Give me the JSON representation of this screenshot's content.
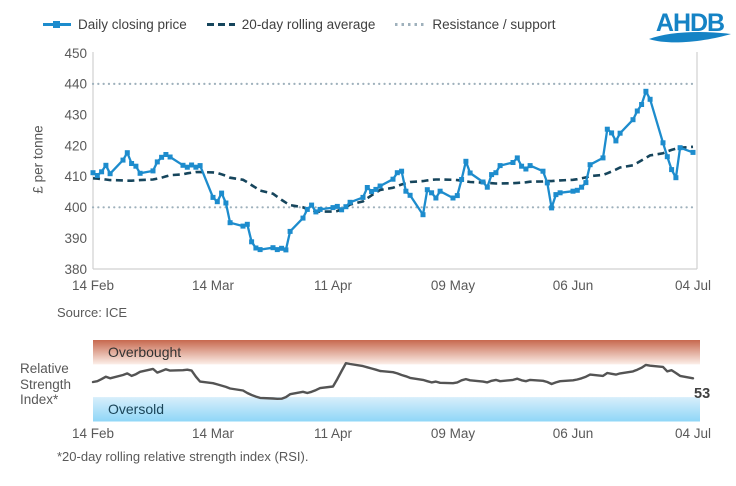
{
  "legend": {
    "items": [
      {
        "label": "Daily closing price",
        "swatch": "line-with-square-marker"
      },
      {
        "label": "20-day rolling average",
        "swatch": "dashed-line"
      },
      {
        "label": "Resistance / support",
        "swatch": "dotted-line"
      }
    ]
  },
  "logo": {
    "text": "AHDB"
  },
  "colors": {
    "price_line": "#1d8ccd",
    "rolling_avg_line": "#16455c",
    "resistance_support": "#9fb1bc",
    "rsi_line": "#545454",
    "axis_line": "#d0d0d0",
    "text": "#595959",
    "logo_blue": "#1583c5",
    "overbought_top": "#c7684e",
    "overbought_bottom": "#fcefe9",
    "oversold_top": "#d8effb",
    "oversold_bottom": "#8fd6f7"
  },
  "chart_data": [
    {
      "type": "line",
      "title": "",
      "xlabel": "",
      "ylabel": "£ per tonne",
      "ylim": [
        380,
        450
      ],
      "yticks": [
        380,
        390,
        400,
        410,
        420,
        430,
        440,
        450
      ],
      "xticklabels": [
        "14 Feb",
        "14 Mar",
        "11 Apr",
        "09 May",
        "06 Jun",
        "04 Jul"
      ],
      "x_is_trading_days": true,
      "resistance": 440,
      "support": 400,
      "grid": false,
      "legend_position": "top",
      "source_note": "Source: ICE",
      "series": [
        {
          "name": "Daily closing price",
          "marker": "square",
          "values": [
            411.2,
            410.3,
            411.5,
            413.6,
            410.9,
            415.3,
            417.7,
            414.2,
            413.3,
            411.0,
            411.8,
            414.7,
            416.2,
            417.1,
            416.3,
            413.6,
            413.0,
            413.7,
            413.0,
            413.5,
            403.2,
            401.8,
            404.6,
            401.4,
            395.0,
            393.9,
            394.5,
            388.8,
            386.8,
            386.3,
            386.9,
            386.3,
            386.7,
            386.2,
            392.2,
            396.5,
            399.3,
            400.7,
            398.5,
            399.3,
            399.9,
            400.3,
            399.2,
            400.2,
            401.6,
            403.2,
            406.4,
            405.1,
            405.8,
            406.9,
            409.1,
            411.2,
            411.7,
            405.2,
            403.9,
            397.6,
            405.7,
            404.7,
            403.0,
            405.2,
            403.0,
            403.8,
            409.0,
            414.9,
            411.1,
            408.2,
            406.5,
            410.6,
            411.2,
            413.5,
            414.5,
            416.0,
            413.3,
            412.4,
            413.5,
            411.7,
            407.9,
            399.8,
            404.1,
            404.7,
            405.2,
            405.5,
            406.5,
            408.0,
            413.8,
            416.0,
            425.3,
            424.1,
            421.5,
            424.0,
            428.4,
            431.2,
            433.3,
            437.6,
            435.0,
            420.9,
            416.4,
            412.2,
            409.6,
            419.3,
            417.8
          ]
        },
        {
          "name": "20-day rolling average",
          "style": "dashed",
          "values": [
            409.4,
            409.3,
            409.1,
            409.0,
            408.8,
            408.7,
            408.6,
            408.6,
            408.7,
            408.8,
            409.0,
            409.3,
            409.6,
            410.0,
            410.4,
            410.7,
            411.0,
            411.2,
            411.4,
            411.4,
            411.3,
            411.1,
            410.7,
            410.2,
            409.6,
            408.9,
            408.1,
            407.2,
            406.3,
            405.4,
            404.4,
            403.4,
            402.4,
            401.5,
            400.7,
            400.0,
            399.4,
            399.0,
            398.7,
            398.6,
            398.6,
            398.8,
            399.3,
            400.0,
            400.9,
            401.9,
            402.9,
            403.9,
            404.8,
            405.6,
            406.3,
            406.9,
            407.4,
            407.8,
            408.2,
            408.5,
            408.7,
            408.9,
            409.0,
            409.0,
            408.9,
            408.8,
            408.6,
            408.4,
            408.2,
            408.0,
            407.9,
            407.8,
            407.7,
            407.7,
            407.8,
            407.9,
            408.0,
            408.1,
            408.3,
            408.4,
            408.5,
            408.5,
            408.6,
            408.7,
            408.9,
            409.1,
            409.4,
            409.7,
            410.1,
            410.5,
            411.0,
            411.6,
            412.2,
            412.9,
            413.6,
            414.4,
            415.2,
            416.0,
            416.8,
            417.5,
            418.1,
            418.6,
            419.0,
            419.3,
            419.6
          ]
        }
      ]
    },
    {
      "type": "line",
      "label_lines": [
        "Relative",
        "Strength",
        "Index*"
      ],
      "ylim": [
        0,
        100
      ],
      "overbought_threshold": 70,
      "oversold_threshold": 30,
      "overbought_label": "Overbought",
      "oversold_label": "Oversold",
      "end_value_label": "53",
      "xticklabels": [
        "14 Feb",
        "14 Mar",
        "11 Apr",
        "09 May",
        "06 Jun",
        "04 Jul"
      ],
      "footnote": "*20-day rolling relative strength index (RSI).",
      "series": [
        {
          "name": "RSI",
          "values": [
            48.5,
            49.5,
            52.0,
            55.0,
            53.0,
            57.0,
            59.0,
            56.0,
            58.0,
            61.0,
            64.5,
            60.0,
            62.0,
            64.0,
            62.5,
            63.0,
            63.5,
            62.5,
            55.0,
            49.0,
            47.0,
            45.5,
            44.0,
            42.5,
            40.5,
            38.0,
            35.0,
            32.5,
            30.5,
            29.0,
            28.2,
            27.8,
            28.0,
            30.0,
            33.5,
            36.5,
            35.0,
            36.5,
            38.5,
            41.0,
            43.0,
            52.0,
            62.0,
            71.5,
            70.5,
            68.0,
            66.5,
            65.0,
            63.5,
            62.0,
            60.5,
            59.0,
            57.0,
            55.5,
            53.5,
            51.0,
            49.5,
            48.0,
            49.0,
            47.5,
            47.0,
            48.0,
            50.5,
            52.0,
            50.5,
            49.0,
            48.0,
            50.0,
            51.0,
            49.5,
            51.0,
            52.5,
            50.5,
            49.5,
            51.0,
            50.0,
            48.5,
            46.0,
            48.0,
            49.5,
            50.5,
            51.5,
            53.0,
            55.0,
            57.5,
            56.0,
            59.5,
            58.5,
            57.5,
            59.0,
            61.5,
            63.5,
            66.0,
            69.5,
            68.5,
            67.0,
            61.5,
            63.0,
            59.5,
            56.0,
            53.0
          ]
        }
      ]
    }
  ]
}
